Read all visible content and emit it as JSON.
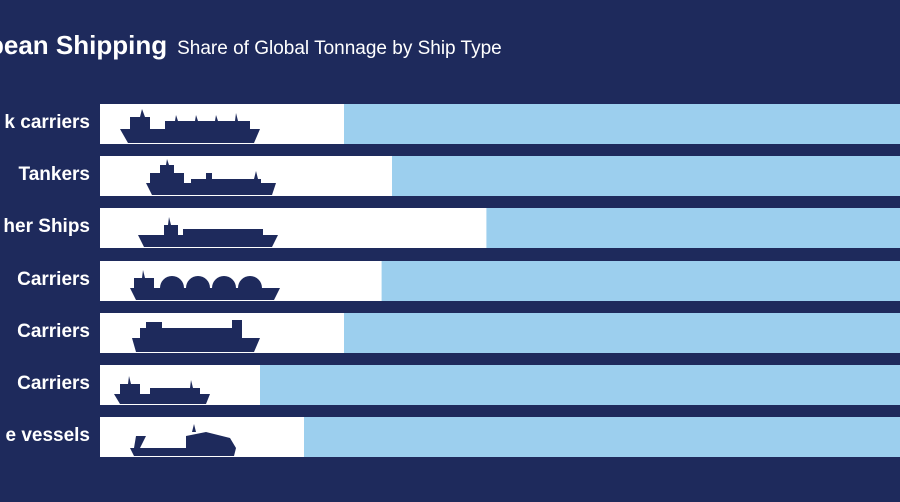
{
  "header": {
    "title": "pean Shipping",
    "subtitle": "Share of Global Tonnage by Ship Type"
  },
  "colors": {
    "background": "#1e2a5c",
    "share_bar": "#ffffff",
    "remainder_bar": "#9ccfee",
    "ship_silhouette": "#1e2a5c"
  },
  "chart_data": {
    "type": "bar",
    "orientation": "horizontal",
    "stacked": true,
    "title": "pean Shipping",
    "subtitle": "Share of Global Tonnage by Ship Type",
    "categories": [
      "k carriers",
      "Tankers",
      "her Ships",
      "Carriers",
      "Carriers",
      "Carriers",
      "e vessels"
    ],
    "icons": [
      "bulk-carrier-icon",
      "tanker-icon",
      "general-cargo-ship-icon",
      "gas-carrier-icon",
      "container-ship-icon",
      "chemical-carrier-icon",
      "offshore-vessel-icon"
    ],
    "values": [
      30.5,
      36.5,
      48.3,
      35.2,
      30.5,
      20.0,
      25.5
    ],
    "unit": "% of bar (estimated)",
    "xlim": [
      0,
      100
    ],
    "grid": false,
    "legend": "none"
  }
}
